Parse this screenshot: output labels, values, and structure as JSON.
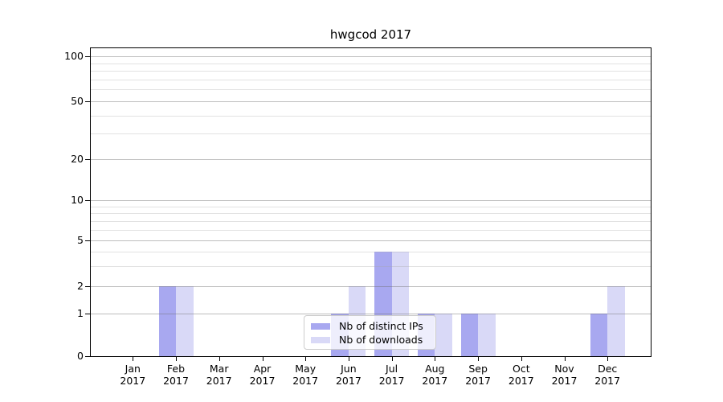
{
  "chart_data": {
    "type": "bar",
    "title": "hwgcod 2017",
    "year": "2017",
    "categories": [
      "Jan",
      "Feb",
      "Mar",
      "Apr",
      "May",
      "Jun",
      "Jul",
      "Aug",
      "Sep",
      "Oct",
      "Nov",
      "Dec"
    ],
    "series": [
      {
        "name": "Nb of distinct IPs",
        "color": "#a8a8f0",
        "values": [
          0,
          2,
          0,
          0,
          0,
          1,
          4,
          1,
          1,
          0,
          0,
          1
        ]
      },
      {
        "name": "Nb of downloads",
        "color": "#d9d9f7",
        "values": [
          0,
          2,
          0,
          0,
          0,
          2,
          4,
          1,
          1,
          0,
          0,
          2
        ]
      }
    ],
    "xlabel": "",
    "ylabel": "",
    "y_ticks": [
      0,
      1,
      2,
      5,
      10,
      20,
      50,
      100
    ],
    "y_minor_ticks": [
      3,
      4,
      6,
      7,
      8,
      9,
      30,
      40,
      60,
      70,
      80,
      90
    ],
    "ylim": [
      0,
      100
    ],
    "yscale": "log-with-zero",
    "grid": true,
    "grid_over_bars": true,
    "legend_position": "bottom-center"
  }
}
